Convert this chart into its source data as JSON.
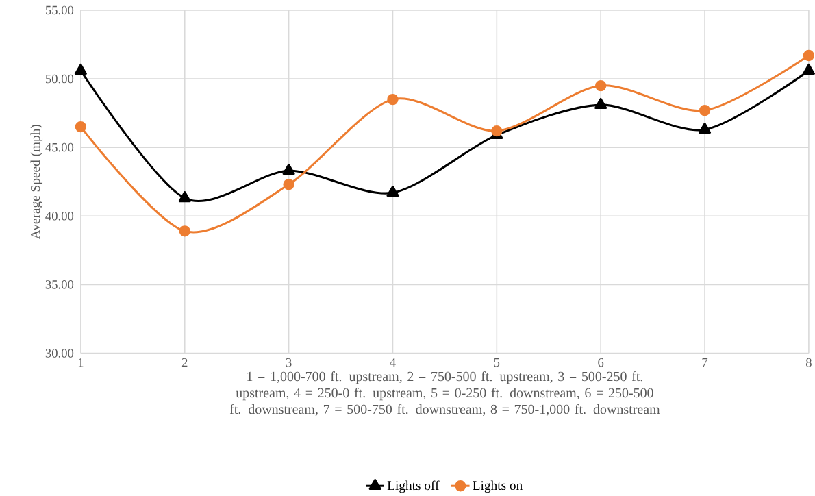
{
  "chart_data": {
    "type": "line",
    "xlabel": "1 = 1,000-700 ft. upstream, 2 = 750-500 ft. upstream, 3 = 500-250 ft. upstream, 4 = 250-0 ft. upstream, 5 = 0-250 ft. downstream, 6 = 250-500 ft. downstream, 7 = 500-750 ft. downstream, 8 = 750-1,000 ft. downstream",
    "ylabel": "Average Speed (mph)",
    "x": [
      1,
      2,
      3,
      4,
      5,
      6,
      7,
      8
    ],
    "series": [
      {
        "name": "Lights off",
        "color": "#000000",
        "marker": "triangle",
        "values": [
          50.6,
          41.3,
          43.3,
          41.7,
          45.9,
          48.1,
          46.3,
          50.6
        ]
      },
      {
        "name": "Lights on",
        "color": "#ed7d31",
        "marker": "circle",
        "values": [
          46.5,
          38.9,
          42.3,
          48.5,
          46.2,
          49.5,
          47.7,
          51.7
        ]
      }
    ],
    "xlim": [
      1,
      8
    ],
    "xticks": [
      1,
      2,
      3,
      4,
      5,
      6,
      7,
      8
    ],
    "ylim": [
      30,
      55
    ],
    "yticks": [
      {
        "value": 30,
        "label": "30.00"
      },
      {
        "value": 35,
        "label": "35.00"
      },
      {
        "value": 40,
        "label": "40.00"
      },
      {
        "value": 45,
        "label": "45.00"
      },
      {
        "value": 50,
        "label": "50.00"
      },
      {
        "value": 55,
        "label": "55.00"
      }
    ],
    "grid": true,
    "legend": "bottom",
    "line_style": "solid"
  }
}
